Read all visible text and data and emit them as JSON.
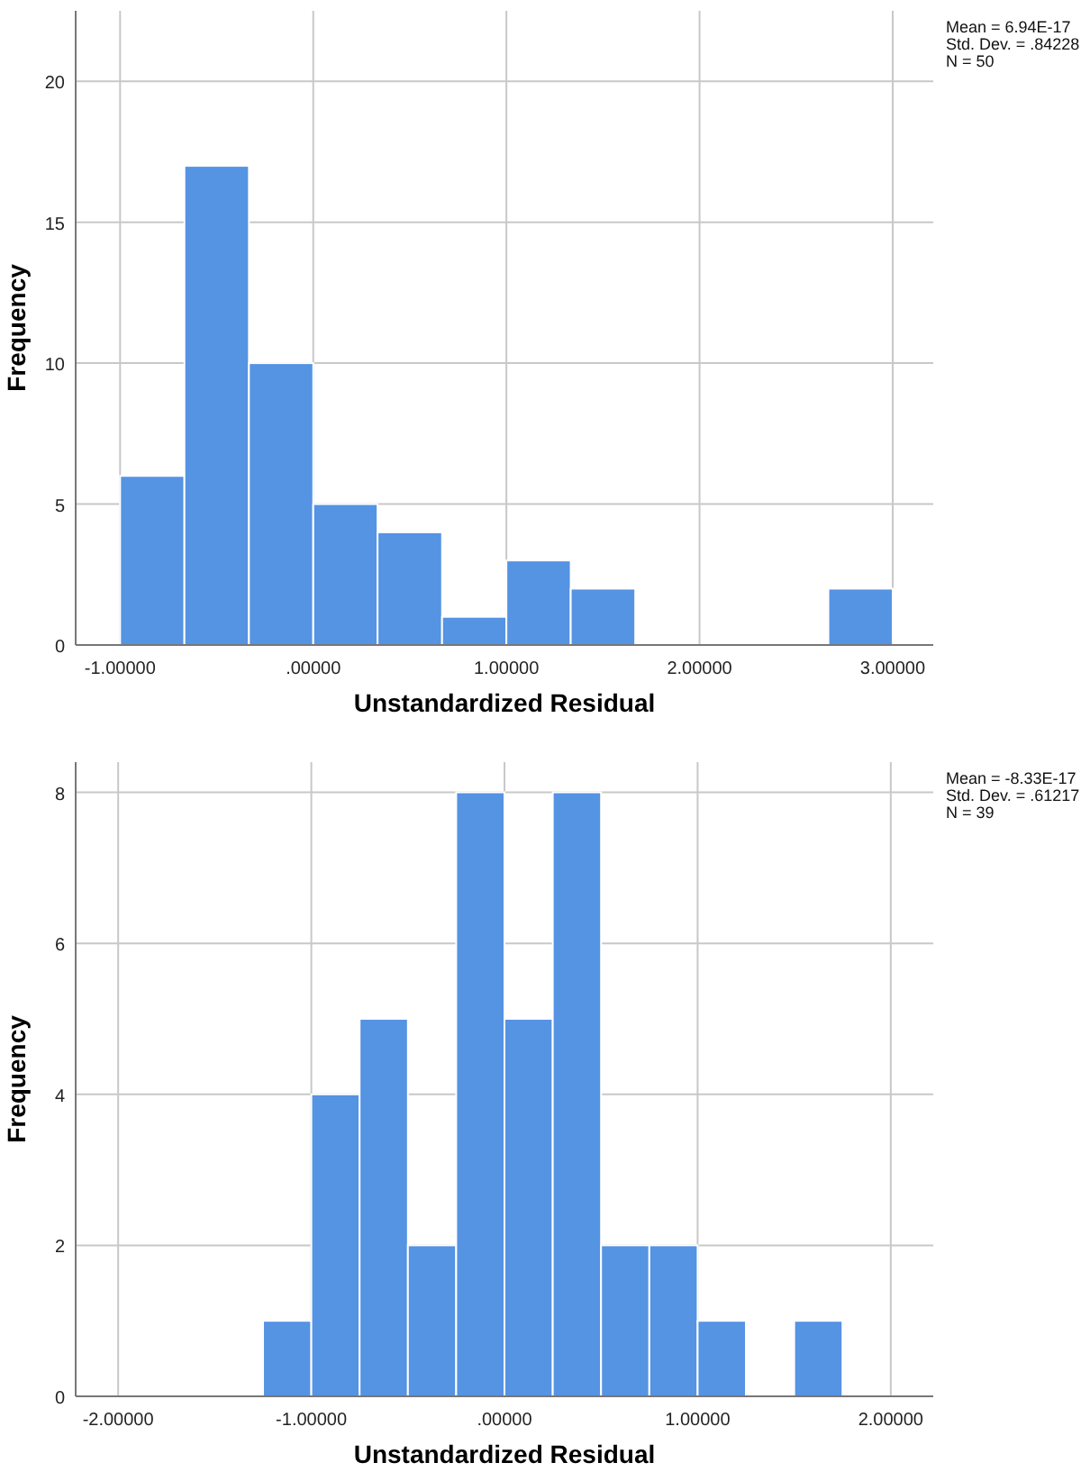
{
  "chart_data": [
    {
      "type": "histogram",
      "xlabel": "Unstandardized Residual",
      "ylabel": "Frequency",
      "bins": [
        -1.0,
        -0.667,
        -0.333,
        0.0,
        0.333,
        0.667,
        1.0,
        1.333,
        1.667,
        2.0,
        2.333,
        2.667,
        3.0
      ],
      "values": [
        6,
        17,
        10,
        5,
        4,
        1,
        3,
        2,
        0,
        0,
        0,
        2
      ],
      "color": "#5593e3",
      "xlim": [
        -1.23,
        3.21
      ],
      "xticks": [
        {
          "value": -1,
          "label": "-1.00000"
        },
        {
          "value": 0,
          "label": ".00000"
        },
        {
          "value": 1,
          "label": "1.00000"
        },
        {
          "value": 2,
          "label": "2.00000"
        },
        {
          "value": 3,
          "label": "3.00000"
        }
      ],
      "ylim": [
        0,
        22.5
      ],
      "yticks": [
        0,
        5,
        10,
        15,
        20
      ],
      "grid": true,
      "annotations": [
        "Mean = 6.94E-17",
        "Std. Dev. = .84228",
        "N = 50"
      ]
    },
    {
      "type": "histogram",
      "xlabel": "Unstandardized Residual",
      "ylabel": "Frequency",
      "bins": [
        -1.25,
        -1.0,
        -0.75,
        -0.5,
        -0.25,
        0.0,
        0.25,
        0.5,
        0.75,
        1.0,
        1.25,
        1.5,
        1.75
      ],
      "values": [
        1,
        4,
        5,
        2,
        8,
        5,
        8,
        2,
        2,
        1,
        0,
        1
      ],
      "color": "#5593e3",
      "xlim": [
        -2.22,
        2.22
      ],
      "xticks": [
        {
          "value": -2,
          "label": "-2.00000"
        },
        {
          "value": -1,
          "label": "-1.00000"
        },
        {
          "value": 0,
          "label": ".00000"
        },
        {
          "value": 1,
          "label": "1.00000"
        },
        {
          "value": 2,
          "label": "2.00000"
        }
      ],
      "ylim": [
        0,
        8.4
      ],
      "yticks": [
        0,
        2,
        4,
        6,
        8
      ],
      "grid": true,
      "annotations": [
        "Mean = -8.33E-17",
        "Std. Dev. = .61217",
        "N = 39"
      ]
    }
  ]
}
